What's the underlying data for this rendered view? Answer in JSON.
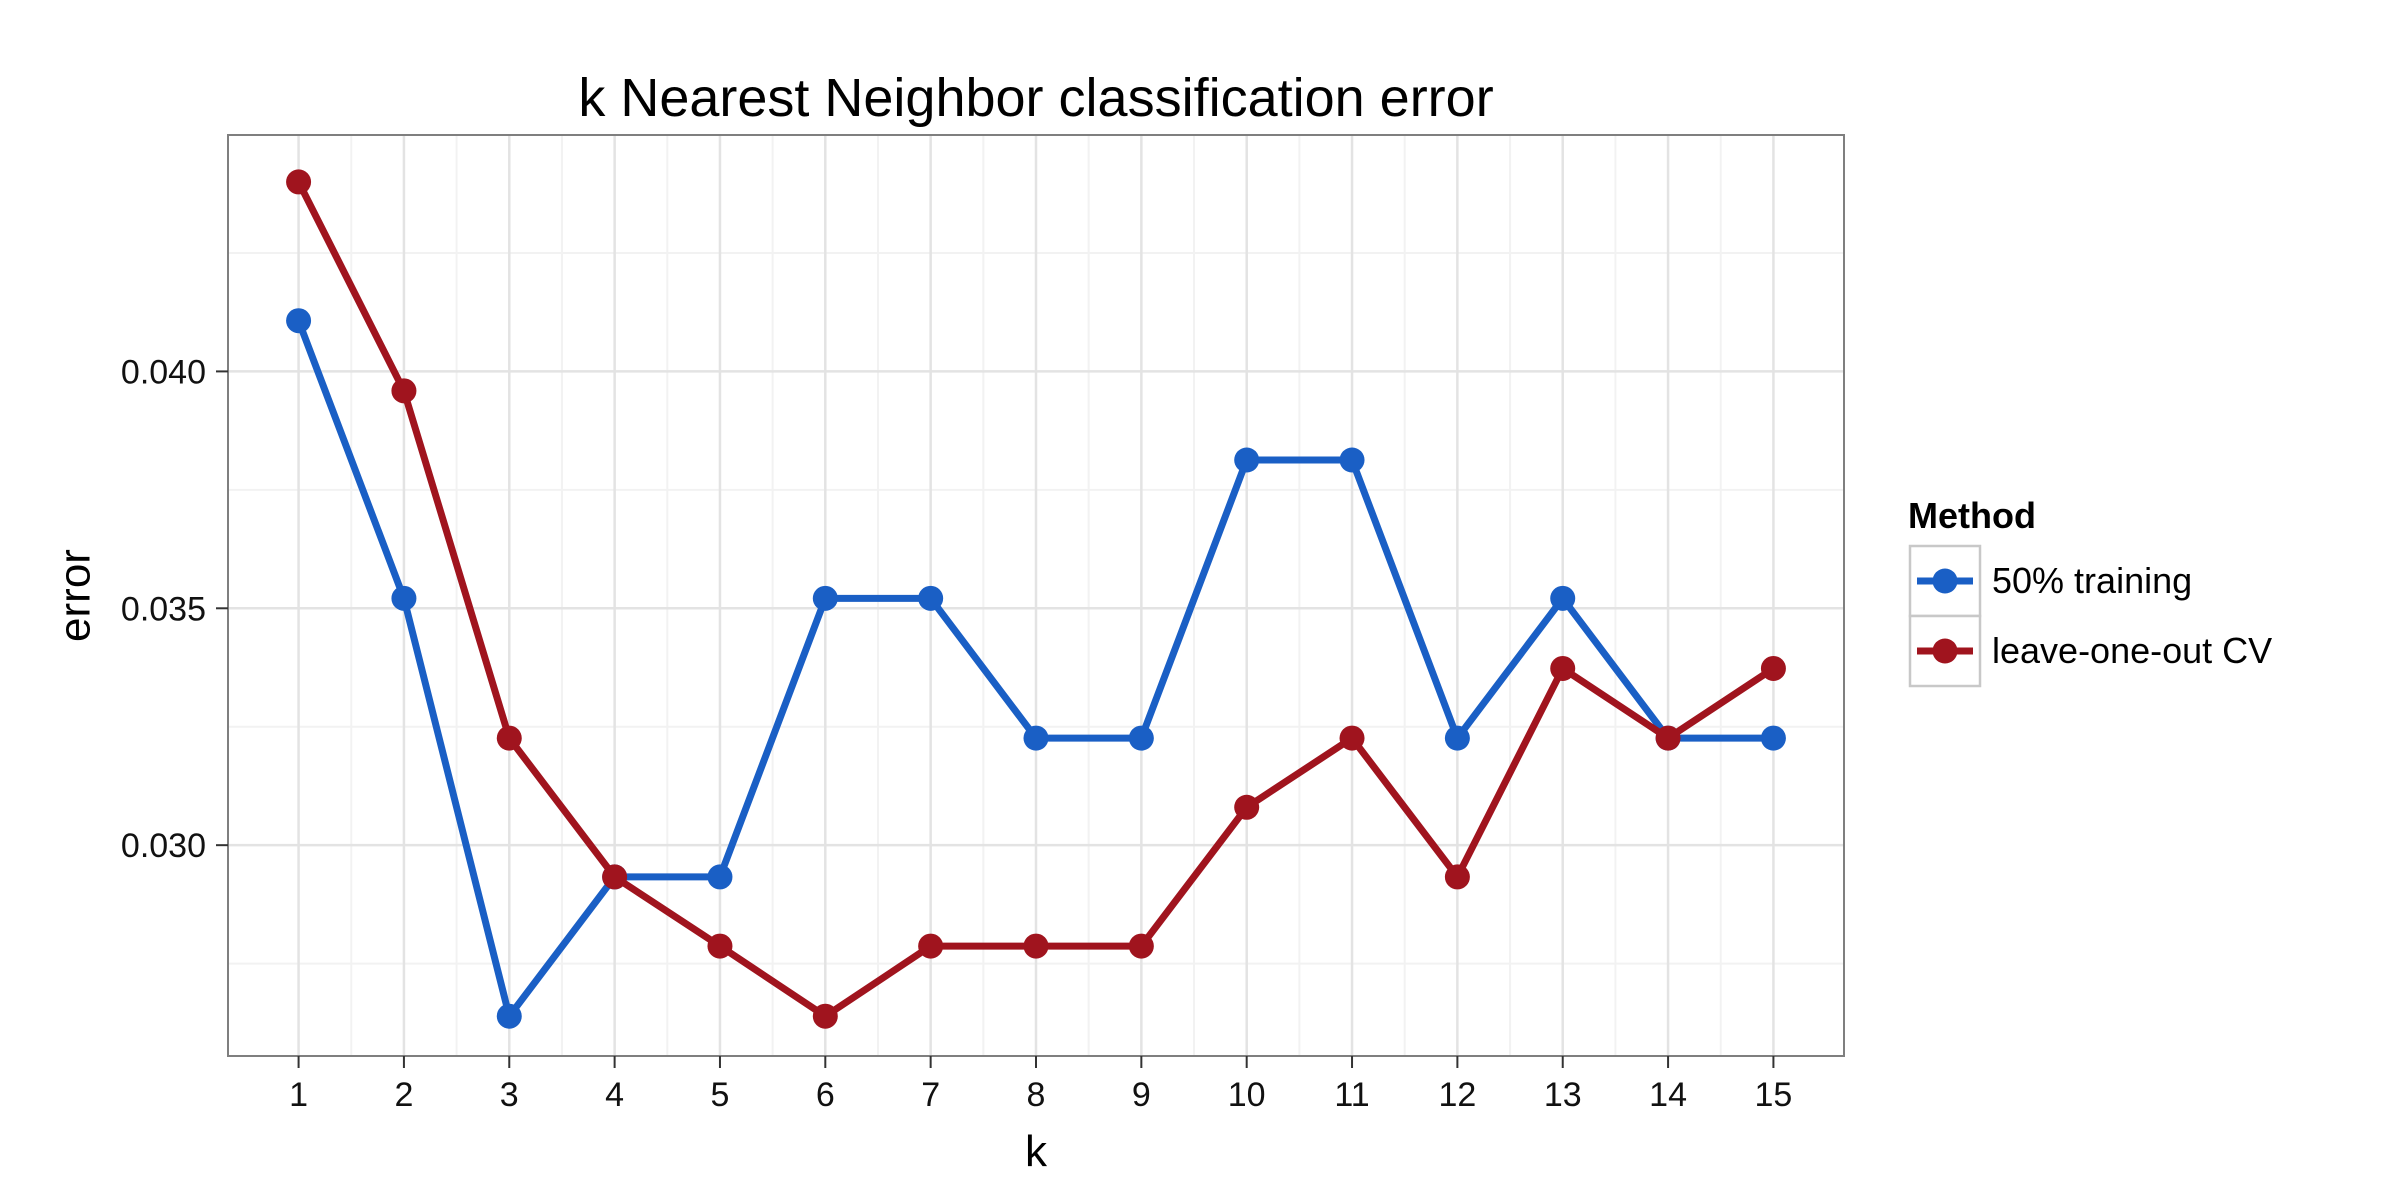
{
  "chart_data": {
    "type": "line",
    "title": "k Nearest Neighbor classification error",
    "xlabel": "k",
    "ylabel": "error",
    "x": [
      1,
      2,
      3,
      4,
      5,
      6,
      7,
      8,
      9,
      10,
      11,
      12,
      13,
      14,
      15
    ],
    "xlim": [
      0.33,
      15.67
    ],
    "ylim": [
      0.02555,
      0.04499
    ],
    "y_ticks": [
      "0.030",
      "0.035",
      "0.040"
    ],
    "y_tick_values": [
      0.03,
      0.035,
      0.04
    ],
    "grid": true,
    "legend_placement": "right",
    "legend_title": "Method",
    "series": [
      {
        "name": "50% training",
        "color": "#1a5fc5",
        "values": [
          0.04107,
          0.03521,
          0.02639,
          0.02933,
          0.02933,
          0.03521,
          0.03521,
          0.03226,
          0.03226,
          0.03813,
          0.03813,
          0.03226,
          0.03521,
          0.03226,
          0.03226
        ]
      },
      {
        "name": "leave-one-out CV",
        "color": "#a0141e",
        "values": [
          0.044,
          0.03959,
          0.03226,
          0.02933,
          0.02787,
          0.02639,
          0.02787,
          0.02787,
          0.02787,
          0.0308,
          0.03226,
          0.02933,
          0.03373,
          0.03226,
          0.03373
        ]
      }
    ]
  }
}
